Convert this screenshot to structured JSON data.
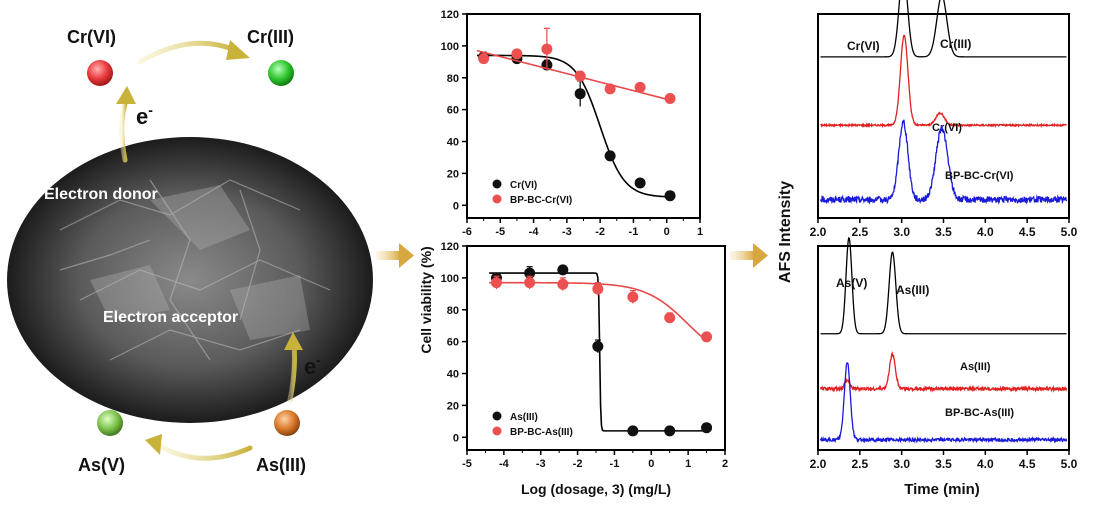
{
  "scheme": {
    "cr6_label": "Cr(VI)",
    "cr3_label": "Cr(III)",
    "as5_label": "As(V)",
    "as3_label": "As(III)",
    "electron_top": "e",
    "electron_bottom": "e",
    "electron_sup": "-",
    "donor_label": "Electron donor",
    "acceptor_label": "Electron acceptor",
    "colors": {
      "cr6": "#e8383a",
      "cr3": "#2ec52e",
      "as5": "#7cc24a",
      "as3": "#d9782a",
      "arrow": "#c8b23a",
      "flow_arrow": "#d8b04a"
    }
  },
  "chart_data": [
    {
      "type": "scatter",
      "id": "cr-viability",
      "ylabel": "Cell viability (%)",
      "xlim": [
        -6,
        1
      ],
      "ylim": [
        -8,
        120
      ],
      "xticks": [
        -6,
        -5,
        -4,
        -3,
        -2,
        -1,
        0,
        1
      ],
      "xtick_labels": [
        "-6",
        "-5",
        "-4",
        "-3",
        "-2",
        "-1",
        "0",
        "1"
      ],
      "yticks": [
        0,
        20,
        40,
        60,
        80,
        100,
        120
      ],
      "legend_position": "bottom-left",
      "series": [
        {
          "name": "Cr(VI)",
          "color": "#000000",
          "x": [
            -5.5,
            -4.5,
            -3.6,
            -2.6,
            -1.7,
            -0.8,
            0.1
          ],
          "y": [
            93,
            92,
            88,
            70,
            31,
            14,
            6
          ],
          "err": [
            3,
            2,
            3,
            8,
            1,
            1,
            1
          ],
          "fit": "sigmoid",
          "fit_params": {
            "top": 94,
            "bottom": 5,
            "ec50": -2.0,
            "slope": 1.2
          }
        },
        {
          "name": "BP-BC-Cr(VI)",
          "color": "#e84848",
          "x": [
            -5.5,
            -4.5,
            -3.6,
            -2.6,
            -1.7,
            -0.8,
            0.1
          ],
          "y": [
            92,
            95,
            98,
            81,
            73,
            74,
            67
          ],
          "err": [
            3,
            2,
            13,
            3,
            1,
            1,
            1
          ],
          "fit": "linear",
          "fit_params": {
            "x0": -5.7,
            "y0": 97,
            "x1": 0.1,
            "y1": 66
          }
        }
      ]
    },
    {
      "type": "scatter",
      "id": "as-viability",
      "xlabel": "Log (dosage, 3) (mg/L)",
      "xlim": [
        -5,
        2
      ],
      "ylim": [
        -8,
        120
      ],
      "xticks": [
        -5,
        -4,
        -3,
        -2,
        -1,
        0,
        1,
        2
      ],
      "xtick_labels": [
        "-5",
        "-4",
        "-3",
        "-2",
        "-1",
        "0",
        "1",
        "2"
      ],
      "yticks": [
        0,
        20,
        40,
        60,
        80,
        100,
        120
      ],
      "legend_position": "bottom-left",
      "series": [
        {
          "name": "As(III)",
          "color": "#000000",
          "x": [
            -4.2,
            -3.3,
            -2.4,
            -1.45,
            -0.5,
            0.5,
            1.5
          ],
          "y": [
            100,
            103,
            105,
            57,
            4,
            4,
            6
          ],
          "err": [
            3,
            4,
            2,
            4,
            1,
            1,
            1
          ],
          "fit": "sigmoid",
          "fit_params": {
            "top": 103,
            "bottom": 4,
            "ec50": -1.4,
            "slope": 30
          }
        },
        {
          "name": "BP-BC-As(III)",
          "color": "#e84848",
          "x": [
            -4.2,
            -3.3,
            -2.4,
            -1.45,
            -0.5,
            0.5,
            1.5
          ],
          "y": [
            97,
            97,
            96,
            93,
            88,
            75,
            63
          ],
          "err": [
            4,
            4,
            4,
            4,
            4,
            3,
            1
          ],
          "fit": "sigmoid",
          "fit_params": {
            "top": 97,
            "bottom": 45,
            "ec50": 1.0,
            "slope": 0.75
          }
        }
      ]
    },
    {
      "type": "line",
      "id": "cr-afs",
      "ylabel": "AFS Intensity",
      "xlim": [
        2.0,
        5.0
      ],
      "xticks": [
        2.0,
        2.5,
        3.0,
        3.5,
        4.0,
        4.5,
        5.0
      ],
      "xtick_labels": [
        "2.0",
        "2.5",
        "3.0",
        "3.5",
        "4.0",
        "4.5",
        "5.0"
      ],
      "annotations": {
        "peak1": "Cr(VI)",
        "peak2": "Cr(III)"
      },
      "series": [
        {
          "name": "",
          "color": "#000000",
          "baseline": 0.79,
          "peaks": [
            {
              "x": 3.02,
              "h": 0.42,
              "w": 0.05
            },
            {
              "x": 3.48,
              "h": 0.3,
              "w": 0.06
            }
          ],
          "noise": 0
        },
        {
          "name": "Cr(VI)",
          "color": "#e02020",
          "baseline": 0.455,
          "peaks": [
            {
              "x": 3.03,
              "h": 0.44,
              "w": 0.045
            },
            {
              "x": 3.46,
              "h": 0.06,
              "w": 0.05
            }
          ],
          "noise": 0.004
        },
        {
          "name": "BP-BC-Cr(VI)",
          "color": "#1a1ad8",
          "baseline": 0.09,
          "peaks": [
            {
              "x": 3.02,
              "h": 0.38,
              "w": 0.055
            },
            {
              "x": 3.48,
              "h": 0.35,
              "w": 0.07
            }
          ],
          "noise": 0.015
        }
      ]
    },
    {
      "type": "line",
      "id": "as-afs",
      "xlabel": "Time (min)",
      "xlim": [
        2.0,
        5.0
      ],
      "xticks": [
        2.0,
        2.5,
        3.0,
        3.5,
        4.0,
        4.5,
        5.0
      ],
      "xtick_labels": [
        "2.0",
        "2.5",
        "3.0",
        "3.5",
        "4.0",
        "4.5",
        "5.0"
      ],
      "annotations": {
        "peak1": "As(V)",
        "peak2": "As(III)"
      },
      "series": [
        {
          "name": "",
          "color": "#000000",
          "baseline": 0.57,
          "peaks": [
            {
              "x": 2.37,
              "h": 0.47,
              "w": 0.035
            },
            {
              "x": 2.89,
              "h": 0.4,
              "w": 0.04
            }
          ],
          "noise": 0
        },
        {
          "name": "As(III)",
          "color": "#e02020",
          "baseline": 0.3,
          "peaks": [
            {
              "x": 2.35,
              "h": 0.04,
              "w": 0.03
            },
            {
              "x": 2.89,
              "h": 0.17,
              "w": 0.035
            }
          ],
          "noise": 0.008
        },
        {
          "name": "BP-BC-As(III)",
          "color": "#1a1ad8",
          "baseline": 0.05,
          "peaks": [
            {
              "x": 2.35,
              "h": 0.38,
              "w": 0.035
            }
          ],
          "noise": 0.008
        }
      ]
    }
  ]
}
